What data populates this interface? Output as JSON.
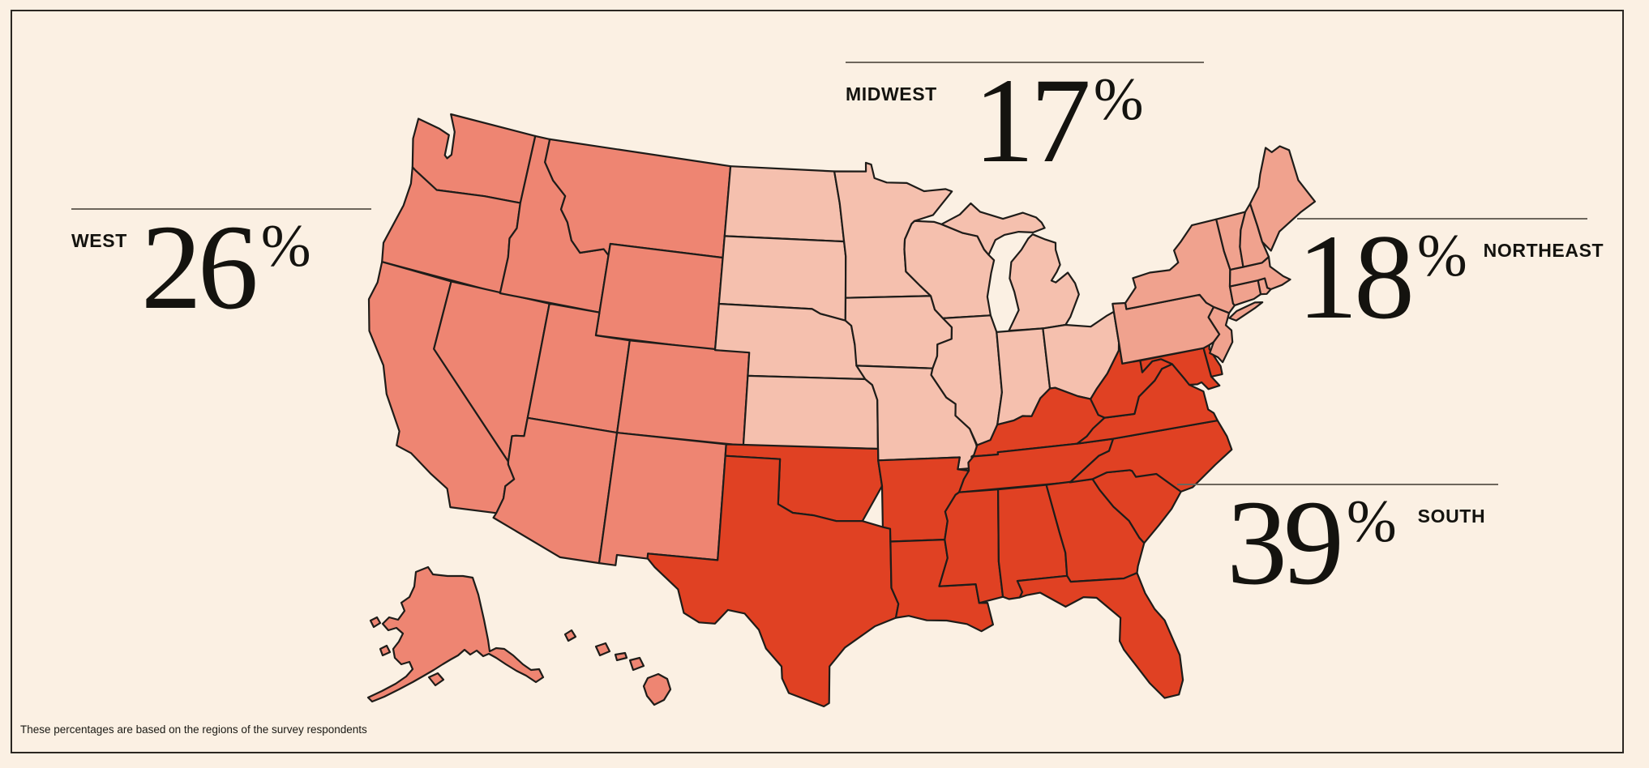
{
  "regions": [
    {
      "id": "west",
      "label": "WEST",
      "value": "26",
      "unit": "%",
      "color": "#ee8572"
    },
    {
      "id": "midwest",
      "label": "MIDWEST",
      "value": "17",
      "unit": "%",
      "color": "#f5c0ae"
    },
    {
      "id": "northeast",
      "label": "NORTHEAST",
      "value": "18",
      "unit": "%",
      "color": "#f0a28e"
    },
    {
      "id": "south",
      "label": "SOUTH",
      "value": "39",
      "unit": "%",
      "color": "#e04123"
    }
  ],
  "footnote": "These percentages are based on the regions of the survey respondents",
  "style": {
    "background": "#fbf0e3",
    "frame_color": "#2b2722",
    "outline_color": "#1e1c19",
    "rule_color": "#6d665c",
    "text_color": "#14130f"
  },
  "chart_data": {
    "type": "choropleth_map",
    "title": "",
    "unit": "%",
    "categories": [
      "West",
      "Midwest",
      "Northeast",
      "South"
    ],
    "values": [
      26,
      17,
      18,
      39
    ],
    "region_colors": [
      "#ee8572",
      "#f5c0ae",
      "#f0a28e",
      "#e04123"
    ],
    "legend_position": "labels-around-map",
    "note": "These percentages are based on the regions of the survey respondents"
  }
}
